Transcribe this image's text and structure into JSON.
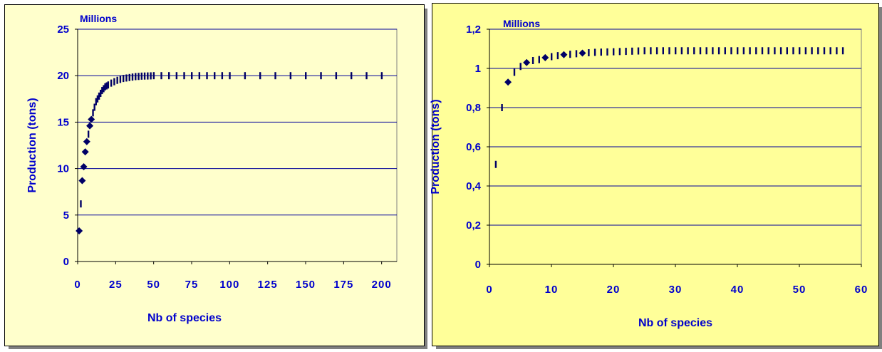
{
  "chart_data": [
    {
      "type": "scatter",
      "xlabel": "Nb of species",
      "ylabel": "Production (tons)",
      "unit_label": "Millions",
      "xlim": [
        0,
        210
      ],
      "ylim": [
        0,
        25
      ],
      "xticks": [
        "0",
        "25",
        "50",
        "75",
        "100",
        "125",
        "150",
        "175",
        "200"
      ],
      "yticks": [
        "0",
        "5",
        "10",
        "15",
        "20",
        "25"
      ],
      "grid": true,
      "plot_bg": "#ffffcc",
      "marker_color": "#000066",
      "gridline_color": "#000099",
      "tick_color": "#0000cc",
      "series": [
        {
          "x": [
            1,
            2,
            3,
            4,
            5,
            6,
            7,
            8,
            9,
            10,
            11,
            12,
            13,
            14,
            15,
            16,
            17,
            18,
            19,
            20,
            22,
            24,
            26,
            28,
            30,
            32,
            34,
            36,
            38,
            40,
            42,
            44,
            46,
            48,
            50,
            55,
            60,
            65,
            70,
            75,
            80,
            85,
            90,
            95,
            100,
            110,
            120,
            130,
            140,
            150,
            160,
            170,
            180,
            190,
            200
          ],
          "y": [
            3.3,
            6.2,
            8.7,
            10.2,
            11.8,
            12.9,
            13.7,
            14.6,
            15.3,
            16.0,
            16.6,
            17.2,
            17.5,
            17.8,
            18.1,
            18.4,
            18.6,
            18.8,
            18.9,
            19.0,
            19.2,
            19.35,
            19.5,
            19.6,
            19.7,
            19.75,
            19.8,
            19.85,
            19.9,
            19.92,
            19.95,
            19.96,
            19.97,
            19.98,
            20.0,
            20.0,
            20.0,
            20.0,
            20.0,
            20.0,
            20.0,
            20.0,
            20.0,
            20.0,
            20.0,
            20.0,
            20.0,
            20.0,
            20.0,
            20.0,
            20.0,
            20.0,
            20.0,
            20.0,
            20.0
          ]
        }
      ]
    },
    {
      "type": "scatter",
      "xlabel": "Nb of species",
      "ylabel": "Production (tons)",
      "unit_label": "Millions",
      "xlim": [
        0,
        60
      ],
      "ylim": [
        0,
        1.2
      ],
      "xticks": [
        "0",
        "10",
        "20",
        "30",
        "40",
        "50",
        "60"
      ],
      "yticks": [
        "0",
        "0,2",
        "0,4",
        "0,6",
        "0,8",
        "1",
        "1,2"
      ],
      "grid": true,
      "plot_bg": "#ffff99",
      "marker_color": "#000066",
      "gridline_color": "#000099",
      "tick_color": "#0000cc",
      "series": [
        {
          "x": [
            1,
            2,
            3,
            4,
            5,
            6,
            7,
            8,
            9,
            10,
            11,
            12,
            13,
            14,
            15,
            16,
            17,
            18,
            19,
            20,
            21,
            22,
            23,
            24,
            25,
            26,
            27,
            28,
            29,
            30,
            31,
            32,
            33,
            34,
            35,
            36,
            37,
            38,
            39,
            40,
            41,
            42,
            43,
            44,
            45,
            46,
            47,
            48,
            49,
            50,
            51,
            52,
            53,
            54,
            55,
            56,
            57
          ],
          "y": [
            0.51,
            0.8,
            0.93,
            0.98,
            1.01,
            1.03,
            1.04,
            1.045,
            1.055,
            1.06,
            1.065,
            1.07,
            1.072,
            1.075,
            1.078,
            1.08,
            1.082,
            1.083,
            1.084,
            1.085,
            1.086,
            1.087,
            1.088,
            1.089,
            1.09,
            1.09,
            1.09,
            1.09,
            1.09,
            1.09,
            1.09,
            1.09,
            1.09,
            1.09,
            1.09,
            1.09,
            1.09,
            1.09,
            1.09,
            1.09,
            1.09,
            1.09,
            1.09,
            1.09,
            1.09,
            1.09,
            1.09,
            1.09,
            1.09,
            1.09,
            1.09,
            1.09,
            1.09,
            1.09,
            1.09,
            1.09,
            1.09
          ]
        }
      ]
    }
  ]
}
